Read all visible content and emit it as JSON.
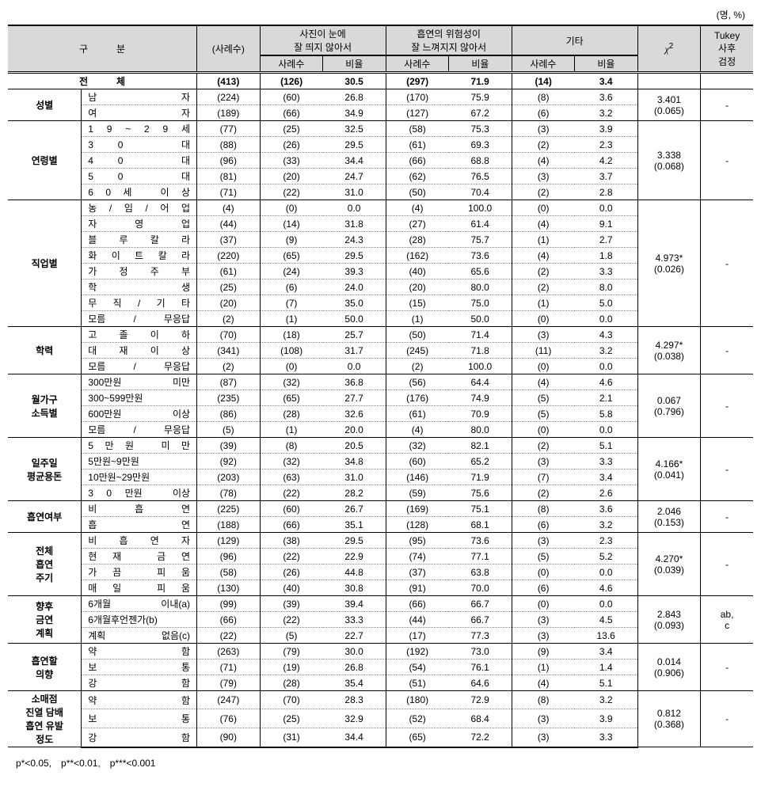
{
  "unit_label": "(명, %)",
  "header": {
    "cat": "구　　　분",
    "n": "(사례수)",
    "col1": "사진이 눈에\n잘 띄지 않아서",
    "col2": "흡연의 위험성이\n잘 느껴지지 않아서",
    "col3": "기타",
    "sub_n": "사례수",
    "sub_p": "비율",
    "chi": "χ²",
    "tukey": "Tukey\n사후\n검정"
  },
  "total_label": "전　　　체",
  "total": {
    "n": "(413)",
    "c1n": "(126)",
    "c1p": "30.5",
    "c2n": "(297)",
    "c2p": "71.9",
    "c3n": "(14)",
    "c3p": "3.4"
  },
  "groups": [
    {
      "label": "성별",
      "chi": "3.401\n(0.065)",
      "tukey": "-",
      "rows": [
        {
          "label": "남　　　　　자",
          "n": "(224)",
          "c1n": "(60)",
          "c1p": "26.8",
          "c2n": "(170)",
          "c2p": "75.9",
          "c3n": "(8)",
          "c3p": "3.6"
        },
        {
          "label": "여　　　　　자",
          "n": "(189)",
          "c1n": "(66)",
          "c1p": "34.9",
          "c2n": "(127)",
          "c2p": "67.2",
          "c3n": "(6)",
          "c3p": "3.2"
        }
      ]
    },
    {
      "label": "연령별",
      "chi": "3.338\n(0.068)",
      "tukey": "-",
      "rows": [
        {
          "label": "1 9 ~ 2 9 세",
          "n": "(77)",
          "c1n": "(25)",
          "c1p": "32.5",
          "c2n": "(58)",
          "c2p": "75.3",
          "c3n": "(3)",
          "c3p": "3.9"
        },
        {
          "label": "3　0　　　대",
          "n": "(88)",
          "c1n": "(26)",
          "c1p": "29.5",
          "c2n": "(61)",
          "c2p": "69.3",
          "c3n": "(2)",
          "c3p": "2.3"
        },
        {
          "label": "4　0　　　대",
          "n": "(96)",
          "c1n": "(33)",
          "c1p": "34.4",
          "c2n": "(66)",
          "c2p": "68.8",
          "c3n": "(4)",
          "c3p": "4.2"
        },
        {
          "label": "5　0　　　대",
          "n": "(81)",
          "c1n": "(20)",
          "c1p": "24.7",
          "c2n": "(62)",
          "c2p": "76.5",
          "c3n": "(3)",
          "c3p": "3.7"
        },
        {
          "label": "6 0 세　이 상",
          "n": "(71)",
          "c1n": "(22)",
          "c1p": "31.0",
          "c2n": "(50)",
          "c2p": "70.4",
          "c3n": "(2)",
          "c3p": "2.8"
        }
      ]
    },
    {
      "label": "직업별",
      "chi": "4.973*\n(0.026)",
      "tukey": "-",
      "rows": [
        {
          "label": "농 / 임 / 어 업",
          "n": "(4)",
          "c1n": "(0)",
          "c1p": "0.0",
          "c2n": "(4)",
          "c2p": "100.0",
          "c3n": "(0)",
          "c3p": "0.0"
        },
        {
          "label": "자　영　업",
          "n": "(44)",
          "c1n": "(14)",
          "c1p": "31.8",
          "c2n": "(27)",
          "c2p": "61.4",
          "c3n": "(4)",
          "c3p": "9.1"
        },
        {
          "label": "블 루 칼 라",
          "n": "(37)",
          "c1n": "(9)",
          "c1p": "24.3",
          "c2n": "(28)",
          "c2p": "75.7",
          "c3n": "(1)",
          "c3p": "2.7"
        },
        {
          "label": "화 이 트 칼 라",
          "n": "(220)",
          "c1n": "(65)",
          "c1p": "29.5",
          "c2n": "(162)",
          "c2p": "73.6",
          "c3n": "(4)",
          "c3p": "1.8"
        },
        {
          "label": "가 정 주 부",
          "n": "(61)",
          "c1n": "(24)",
          "c1p": "39.3",
          "c2n": "(40)",
          "c2p": "65.6",
          "c3n": "(2)",
          "c3p": "3.3"
        },
        {
          "label": "학　　　생",
          "n": "(25)",
          "c1n": "(6)",
          "c1p": "24.0",
          "c2n": "(20)",
          "c2p": "80.0",
          "c3n": "(2)",
          "c3p": "8.0"
        },
        {
          "label": "무 직 / 기 타",
          "n": "(20)",
          "c1n": "(7)",
          "c1p": "35.0",
          "c2n": "(15)",
          "c2p": "75.0",
          "c3n": "(1)",
          "c3p": "5.0"
        },
        {
          "label": "모름 / 무응답",
          "n": "(2)",
          "c1n": "(1)",
          "c1p": "50.0",
          "c2n": "(1)",
          "c2p": "50.0",
          "c3n": "(0)",
          "c3p": "0.0"
        }
      ]
    },
    {
      "label": "학력",
      "chi": "4.297*\n(0.038)",
      "tukey": "-",
      "rows": [
        {
          "label": "고 졸 이 하",
          "n": "(70)",
          "c1n": "(18)",
          "c1p": "25.7",
          "c2n": "(50)",
          "c2p": "71.4",
          "c3n": "(3)",
          "c3p": "4.3"
        },
        {
          "label": "대 재 이 상",
          "n": "(341)",
          "c1n": "(108)",
          "c1p": "31.7",
          "c2n": "(245)",
          "c2p": "71.8",
          "c3n": "(11)",
          "c3p": "3.2"
        },
        {
          "label": "모름 / 무응답",
          "n": "(2)",
          "c1n": "(0)",
          "c1p": "0.0",
          "c2n": "(2)",
          "c2p": "100.0",
          "c3n": "(0)",
          "c3p": "0.0"
        }
      ]
    },
    {
      "label": "월가구\n소득별",
      "chi": "0.067\n(0.796)",
      "tukey": "-",
      "rows": [
        {
          "label": "300만원　미만",
          "n": "(87)",
          "c1n": "(32)",
          "c1p": "36.8",
          "c2n": "(56)",
          "c2p": "64.4",
          "c3n": "(4)",
          "c3p": "4.6"
        },
        {
          "label": "300~599만원",
          "n": "(235)",
          "c1n": "(65)",
          "c1p": "27.7",
          "c2n": "(176)",
          "c2p": "74.9",
          "c3n": "(5)",
          "c3p": "2.1"
        },
        {
          "label": "600만원　이상",
          "n": "(86)",
          "c1n": "(28)",
          "c1p": "32.6",
          "c2n": "(61)",
          "c2p": "70.9",
          "c3n": "(5)",
          "c3p": "5.8"
        },
        {
          "label": "모름 / 무응답",
          "n": "(5)",
          "c1n": "(1)",
          "c1p": "20.0",
          "c2n": "(4)",
          "c2p": "80.0",
          "c3n": "(0)",
          "c3p": "0.0"
        }
      ]
    },
    {
      "label": "일주일\n평균용돈",
      "chi": "4.166*\n(0.041)",
      "tukey": "-",
      "rows": [
        {
          "label": "5 만 원　미 만",
          "n": "(39)",
          "c1n": "(8)",
          "c1p": "20.5",
          "c2n": "(32)",
          "c2p": "82.1",
          "c3n": "(2)",
          "c3p": "5.1"
        },
        {
          "label": "5만원~9만원",
          "n": "(92)",
          "c1n": "(32)",
          "c1p": "34.8",
          "c2n": "(60)",
          "c2p": "65.2",
          "c3n": "(3)",
          "c3p": "3.3"
        },
        {
          "label": "10만원~29만원",
          "n": "(203)",
          "c1n": "(63)",
          "c1p": "31.0",
          "c2n": "(146)",
          "c2p": "71.9",
          "c3n": "(7)",
          "c3p": "3.4"
        },
        {
          "label": "3 0 만원　이상",
          "n": "(78)",
          "c1n": "(22)",
          "c1p": "28.2",
          "c2n": "(59)",
          "c2p": "75.6",
          "c3n": "(2)",
          "c3p": "2.6"
        }
      ]
    },
    {
      "label": "흡연여부",
      "chi": "2.046\n(0.153)",
      "tukey": "-",
      "rows": [
        {
          "label": "비　흡　연",
          "n": "(225)",
          "c1n": "(60)",
          "c1p": "26.7",
          "c2n": "(169)",
          "c2p": "75.1",
          "c3n": "(8)",
          "c3p": "3.6"
        },
        {
          "label": "흡　　　연",
          "n": "(188)",
          "c1n": "(66)",
          "c1p": "35.1",
          "c2n": "(128)",
          "c2p": "68.1",
          "c3n": "(6)",
          "c3p": "3.2"
        }
      ]
    },
    {
      "label": "전체\n흡연\n주기",
      "chi": "4.270*\n(0.039)",
      "tukey": "-",
      "rows": [
        {
          "label": "비 흡 연 자",
          "n": "(129)",
          "c1n": "(38)",
          "c1p": "29.5",
          "c2n": "(95)",
          "c2p": "73.6",
          "c3n": "(3)",
          "c3p": "2.3"
        },
        {
          "label": "현 재　금 연",
          "n": "(96)",
          "c1n": "(22)",
          "c1p": "22.9",
          "c2n": "(74)",
          "c2p": "77.1",
          "c3n": "(5)",
          "c3p": "5.2"
        },
        {
          "label": "가 끔　피 움",
          "n": "(58)",
          "c1n": "(26)",
          "c1p": "44.8",
          "c2n": "(37)",
          "c2p": "63.8",
          "c3n": "(0)",
          "c3p": "0.0"
        },
        {
          "label": "매 일　피 움",
          "n": "(130)",
          "c1n": "(40)",
          "c1p": "30.8",
          "c2n": "(91)",
          "c2p": "70.0",
          "c3n": "(6)",
          "c3p": "4.6"
        }
      ]
    },
    {
      "label": "향후\n금연\n계획",
      "chi": "2.843\n(0.093)",
      "tukey": "ab,\nc",
      "rows": [
        {
          "label": "6개월 이내(a)",
          "n": "(99)",
          "c1n": "(39)",
          "c1p": "39.4",
          "c2n": "(66)",
          "c2p": "66.7",
          "c3n": "(0)",
          "c3p": "0.0"
        },
        {
          "label": "6개월후언젠가(b)",
          "n": "(66)",
          "c1n": "(22)",
          "c1p": "33.3",
          "c2n": "(44)",
          "c2p": "66.7",
          "c3n": "(3)",
          "c3p": "4.5"
        },
        {
          "label": "계획 없음(c)",
          "n": "(22)",
          "c1n": "(5)",
          "c1p": "22.7",
          "c2n": "(17)",
          "c2p": "77.3",
          "c3n": "(3)",
          "c3p": "13.6"
        }
      ]
    },
    {
      "label": "흡연할\n의향",
      "chi": "0.014\n(0.906)",
      "tukey": "-",
      "rows": [
        {
          "label": "약　　　함",
          "n": "(263)",
          "c1n": "(79)",
          "c1p": "30.0",
          "c2n": "(192)",
          "c2p": "73.0",
          "c3n": "(9)",
          "c3p": "3.4"
        },
        {
          "label": "보　　　통",
          "n": "(71)",
          "c1n": "(19)",
          "c1p": "26.8",
          "c2n": "(54)",
          "c2p": "76.1",
          "c3n": "(1)",
          "c3p": "1.4"
        },
        {
          "label": "강　　　함",
          "n": "(79)",
          "c1n": "(28)",
          "c1p": "35.4",
          "c2n": "(51)",
          "c2p": "64.6",
          "c3n": "(4)",
          "c3p": "5.1"
        }
      ]
    },
    {
      "label": "소매점\n진열 담배\n흡연 유발\n정도",
      "chi": "0.812\n(0.368)",
      "tukey": "-",
      "rows": [
        {
          "label": "약　　　함",
          "n": "(247)",
          "c1n": "(70)",
          "c1p": "28.3",
          "c2n": "(180)",
          "c2p": "72.9",
          "c3n": "(8)",
          "c3p": "3.2"
        },
        {
          "label": "보　　　통",
          "n": "(76)",
          "c1n": "(25)",
          "c1p": "32.9",
          "c2n": "(52)",
          "c2p": "68.4",
          "c3n": "(3)",
          "c3p": "3.9"
        },
        {
          "label": "강　　　함",
          "n": "(90)",
          "c1n": "(31)",
          "c1p": "34.4",
          "c2n": "(65)",
          "c2p": "72.2",
          "c3n": "(3)",
          "c3p": "3.3"
        }
      ]
    }
  ],
  "footnote": "p*<0.05,　p**<0.01,　p***<0.001"
}
